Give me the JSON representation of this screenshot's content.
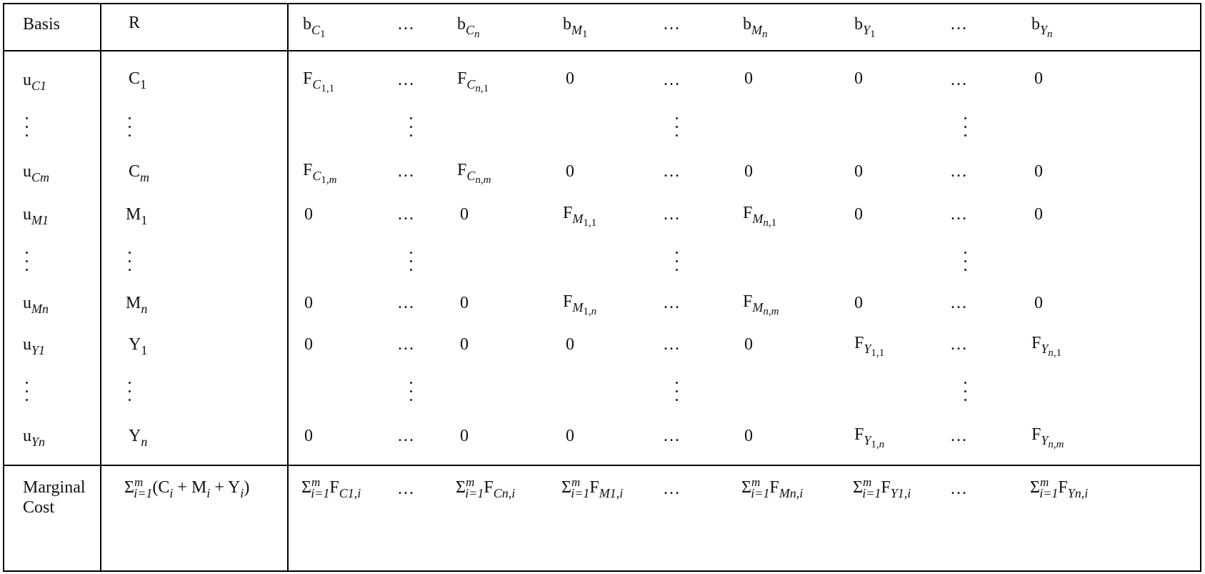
{
  "table": {
    "header": {
      "basis": "Basis",
      "r": "R",
      "b_letter": "b",
      "c1_sub": "C",
      "c1_idx": "1",
      "cn_sub": "C",
      "cn_idx": "n",
      "m1_sub": "M",
      "m1_idx": "1",
      "mn_sub": "M",
      "mn_idx": "n",
      "y1_sub": "Y",
      "y1_idx": "1",
      "yn_sub": "Y",
      "yn_idx": "n",
      "ellipsis": "…"
    },
    "rows": [
      {
        "basis_sub": "C1",
        "r_letter": "C",
        "r_idx": "1"
      },
      {
        "basis_sub": "Cm",
        "r_letter": "C",
        "r_idx": "m"
      },
      {
        "basis_sub": "M1",
        "r_letter": "M",
        "r_idx": "1"
      },
      {
        "basis_sub": "Mn",
        "r_letter": "M",
        "r_idx": "n"
      },
      {
        "basis_sub": "Y1",
        "r_letter": "Y",
        "r_idx": "1"
      },
      {
        "basis_sub": "Yn",
        "r_letter": "Y",
        "r_idx": "n"
      }
    ],
    "u_letter": "u",
    "f_letter": "F",
    "zero": "0",
    "ellipsis": "…",
    "footer": {
      "label_line1": "Marginal",
      "label_line2": "Cost",
      "sigma": "Σ",
      "sum_from": "i=1",
      "sum_to": "m",
      "r_expr_open": "(C",
      "r_expr_i1": "i",
      "r_expr_plus1": " + M",
      "r_expr_i2": "i",
      "r_expr_plus2": " + Y",
      "r_expr_i3": "i",
      "r_expr_close": ")",
      "c1": "C1,i",
      "cn": "Cn,i",
      "m1": "M1,i",
      "mn": "Mn,i",
      "y1": "Y1,i",
      "yn": "Yn,i"
    }
  }
}
